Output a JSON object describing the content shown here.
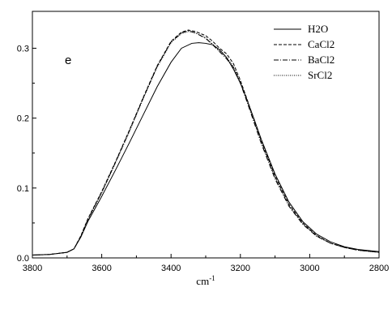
{
  "chart_data": {
    "type": "line",
    "panel_label": "e",
    "xlabel_base": "cm",
    "xlabel_sup": "-1",
    "ylabel": "",
    "xlim": [
      3800,
      2800
    ],
    "ylim": [
      0,
      0.34
    ],
    "x_ticks": [
      3800,
      3600,
      3400,
      3200,
      3000,
      2800
    ],
    "x_tick_labels": [
      "3800",
      "3600",
      "3400",
      "3200",
      "3000",
      "2800"
    ],
    "y_ticks": [
      0.0,
      0.1,
      0.2,
      0.3
    ],
    "y_tick_labels": [
      "0.0",
      "0.1",
      "0.2",
      "0.3"
    ],
    "legend_position": "top-right",
    "series": [
      {
        "name": "H2O",
        "dash": "solid",
        "x": [
          3800,
          3750,
          3700,
          3680,
          3660,
          3640,
          3600,
          3560,
          3520,
          3480,
          3440,
          3400,
          3370,
          3340,
          3320,
          3300,
          3280,
          3260,
          3240,
          3220,
          3200,
          3180,
          3160,
          3140,
          3100,
          3060,
          3020,
          2980,
          2940,
          2900,
          2860,
          2800
        ],
        "y": [
          0.004,
          0.005,
          0.008,
          0.013,
          0.03,
          0.052,
          0.088,
          0.126,
          0.165,
          0.205,
          0.245,
          0.28,
          0.3,
          0.307,
          0.308,
          0.307,
          0.305,
          0.298,
          0.287,
          0.27,
          0.25,
          0.225,
          0.198,
          0.17,
          0.12,
          0.08,
          0.052,
          0.034,
          0.023,
          0.016,
          0.012,
          0.009
        ]
      },
      {
        "name": "CaCl2",
        "dash": "dashed",
        "x": [
          3800,
          3750,
          3700,
          3680,
          3660,
          3640,
          3600,
          3560,
          3520,
          3480,
          3440,
          3400,
          3370,
          3350,
          3330,
          3300,
          3280,
          3260,
          3240,
          3220,
          3200,
          3180,
          3160,
          3140,
          3100,
          3060,
          3020,
          2980,
          2940,
          2900,
          2860,
          2800
        ],
        "y": [
          0.004,
          0.005,
          0.008,
          0.013,
          0.032,
          0.056,
          0.095,
          0.138,
          0.183,
          0.23,
          0.275,
          0.31,
          0.323,
          0.326,
          0.324,
          0.318,
          0.31,
          0.3,
          0.292,
          0.278,
          0.254,
          0.226,
          0.197,
          0.168,
          0.117,
          0.077,
          0.05,
          0.032,
          0.021,
          0.015,
          0.011,
          0.008
        ]
      },
      {
        "name": "BaCl2",
        "dash": "dashdot",
        "x": [
          3800,
          3750,
          3700,
          3680,
          3660,
          3640,
          3600,
          3560,
          3520,
          3480,
          3440,
          3400,
          3370,
          3350,
          3330,
          3300,
          3280,
          3260,
          3240,
          3220,
          3200,
          3180,
          3160,
          3140,
          3100,
          3060,
          3020,
          2980,
          2940,
          2900,
          2860,
          2800
        ],
        "y": [
          0.004,
          0.005,
          0.008,
          0.013,
          0.031,
          0.055,
          0.094,
          0.137,
          0.182,
          0.229,
          0.274,
          0.309,
          0.322,
          0.325,
          0.322,
          0.314,
          0.305,
          0.295,
          0.285,
          0.272,
          0.25,
          0.222,
          0.193,
          0.164,
          0.113,
          0.074,
          0.048,
          0.031,
          0.021,
          0.015,
          0.011,
          0.008
        ]
      },
      {
        "name": "SrCl2",
        "dash": "dotted",
        "x": [
          3800,
          3750,
          3700,
          3680,
          3660,
          3640,
          3600,
          3560,
          3520,
          3480,
          3440,
          3400,
          3370,
          3350,
          3330,
          3300,
          3280,
          3260,
          3240,
          3220,
          3200,
          3180,
          3160,
          3140,
          3100,
          3060,
          3020,
          2980,
          2940,
          2900,
          2860,
          2800
        ],
        "y": [
          0.004,
          0.005,
          0.008,
          0.013,
          0.031,
          0.054,
          0.093,
          0.136,
          0.181,
          0.228,
          0.273,
          0.308,
          0.321,
          0.324,
          0.322,
          0.315,
          0.306,
          0.296,
          0.287,
          0.274,
          0.252,
          0.224,
          0.195,
          0.166,
          0.115,
          0.075,
          0.049,
          0.031,
          0.021,
          0.015,
          0.011,
          0.008
        ]
      }
    ]
  }
}
